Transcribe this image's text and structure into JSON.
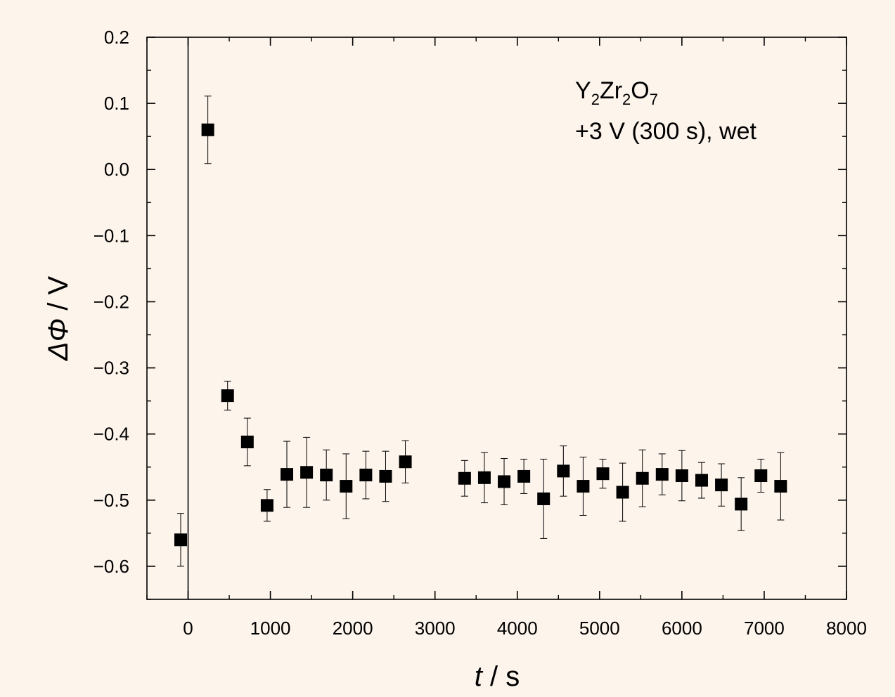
{
  "chart_data": {
    "type": "scatter",
    "annotation": {
      "line1": [
        "Y",
        "2",
        "Zr",
        "2",
        "O",
        "7"
      ],
      "line2": "+3 V (300 s), wet"
    },
    "xlabel": {
      "var": "t",
      "rest": " / s"
    },
    "ylabel": {
      "var": "ΔΦ",
      "rest": " / V"
    },
    "xlim": [
      -500,
      8000
    ],
    "ylim": [
      -0.65,
      0.2
    ],
    "x_ticks": [
      0,
      1000,
      2000,
      3000,
      4000,
      5000,
      6000,
      7000,
      8000
    ],
    "x_tick_labels": [
      "0",
      "1000",
      "2000",
      "3000",
      "4000",
      "5000",
      "6000",
      "7000",
      "8000"
    ],
    "y_ticks": [
      0.2,
      0.1,
      0.0,
      -0.1,
      -0.2,
      -0.3,
      -0.4,
      -0.5,
      -0.6
    ],
    "y_tick_labels": [
      "0.2",
      "0.1",
      "0.0",
      "−0.1",
      "−0.2",
      "−0.3",
      "−0.4",
      "−0.5",
      "−0.6"
    ],
    "vertical_line_x": 0,
    "grid": false,
    "marker": "filled-square",
    "color": "#000000",
    "points": [
      {
        "x": -90,
        "y": -0.56,
        "err": 0.04
      },
      {
        "x": 240,
        "y": 0.06,
        "err": 0.051
      },
      {
        "x": 480,
        "y": -0.342,
        "err": 0.022
      },
      {
        "x": 720,
        "y": -0.412,
        "err": 0.036
      },
      {
        "x": 960,
        "y": -0.508,
        "err": 0.024
      },
      {
        "x": 1200,
        "y": -0.461,
        "err": 0.05
      },
      {
        "x": 1440,
        "y": -0.458,
        "err": 0.053
      },
      {
        "x": 1680,
        "y": -0.462,
        "err": 0.038
      },
      {
        "x": 1920,
        "y": -0.479,
        "err": 0.049
      },
      {
        "x": 2160,
        "y": -0.462,
        "err": 0.036
      },
      {
        "x": 2400,
        "y": -0.464,
        "err": 0.038
      },
      {
        "x": 2640,
        "y": -0.442,
        "err": 0.032
      },
      {
        "x": 3360,
        "y": -0.467,
        "err": 0.027
      },
      {
        "x": 3600,
        "y": -0.466,
        "err": 0.038
      },
      {
        "x": 3840,
        "y": -0.472,
        "err": 0.035
      },
      {
        "x": 4080,
        "y": -0.464,
        "err": 0.026
      },
      {
        "x": 4320,
        "y": -0.498,
        "err": 0.06
      },
      {
        "x": 4560,
        "y": -0.456,
        "err": 0.038
      },
      {
        "x": 4800,
        "y": -0.479,
        "err": 0.044
      },
      {
        "x": 5040,
        "y": -0.46,
        "err": 0.022
      },
      {
        "x": 5280,
        "y": -0.488,
        "err": 0.044
      },
      {
        "x": 5520,
        "y": -0.467,
        "err": 0.043
      },
      {
        "x": 5760,
        "y": -0.461,
        "err": 0.031
      },
      {
        "x": 6000,
        "y": -0.463,
        "err": 0.038
      },
      {
        "x": 6240,
        "y": -0.47,
        "err": 0.027
      },
      {
        "x": 6480,
        "y": -0.477,
        "err": 0.032
      },
      {
        "x": 6720,
        "y": -0.506,
        "err": 0.04
      },
      {
        "x": 6960,
        "y": -0.463,
        "err": 0.025
      },
      {
        "x": 7200,
        "y": -0.479,
        "err": 0.051
      }
    ]
  }
}
